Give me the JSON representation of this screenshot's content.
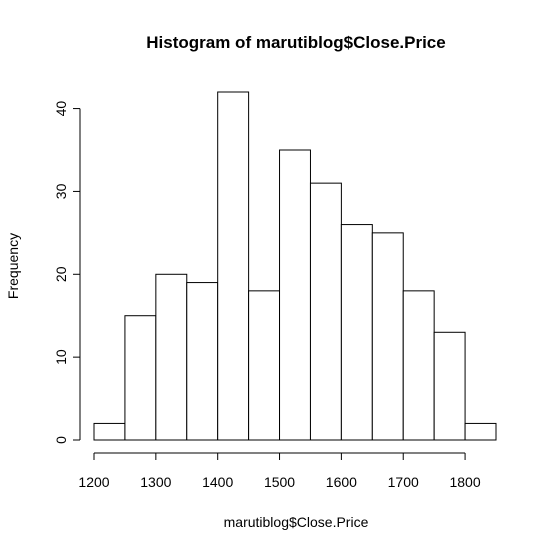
{
  "chart_data": {
    "type": "bar",
    "title": "Histogram of marutiblog$Close.Price",
    "xlabel": "marutiblog$Close.Price",
    "ylabel": "Frequency",
    "bin_edges": [
      1200,
      1250,
      1300,
      1350,
      1400,
      1450,
      1500,
      1550,
      1600,
      1650,
      1700,
      1750,
      1800,
      1850
    ],
    "values": [
      2,
      15,
      20,
      19,
      42,
      18,
      35,
      31,
      26,
      25,
      18,
      13,
      2
    ],
    "xticks": [
      "1200",
      "1300",
      "1400",
      "1500",
      "1600",
      "1700",
      "1800"
    ],
    "xtick_values": [
      1200,
      1300,
      1400,
      1500,
      1600,
      1700,
      1800
    ],
    "yticks": [
      "0",
      "10",
      "20",
      "30",
      "40"
    ],
    "ytick_values": [
      0,
      10,
      20,
      30,
      40
    ],
    "xlim": [
      1200,
      1850
    ],
    "ylim": [
      0,
      42
    ],
    "grid": false,
    "legend": "none",
    "bar_fill": "#ffffff",
    "bar_stroke": "#000000"
  }
}
